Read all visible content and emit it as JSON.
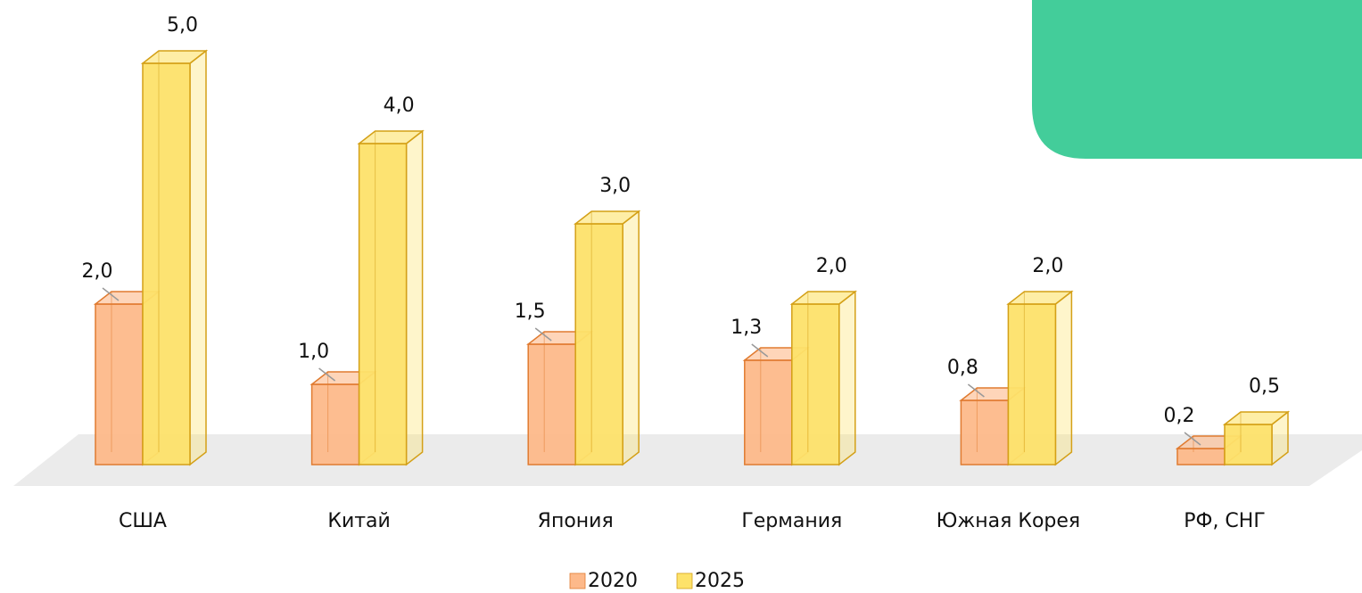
{
  "chart_data": {
    "type": "bar3d",
    "categories": [
      "США",
      "Китай",
      "Япония",
      "Германия",
      "Южная Корея",
      "РФ, СНГ"
    ],
    "series": [
      {
        "name": "2020",
        "color": "#fdb98a",
        "stroke": "#e07b30",
        "values": [
          2.0,
          1.0,
          1.5,
          1.3,
          0.8,
          0.2
        ],
        "value_labels": [
          "2,0",
          "1,0",
          "1,5",
          "1,3",
          "0,8",
          "0,2"
        ]
      },
      {
        "name": "2025",
        "color": "#fde26a",
        "stroke": "#d4a017",
        "values": [
          5.0,
          4.0,
          3.0,
          2.0,
          2.0,
          0.5
        ],
        "value_labels": [
          "5,0",
          "4,0",
          "3,0",
          "2,0",
          "2,0",
          "0,5"
        ]
      }
    ]
  }
}
